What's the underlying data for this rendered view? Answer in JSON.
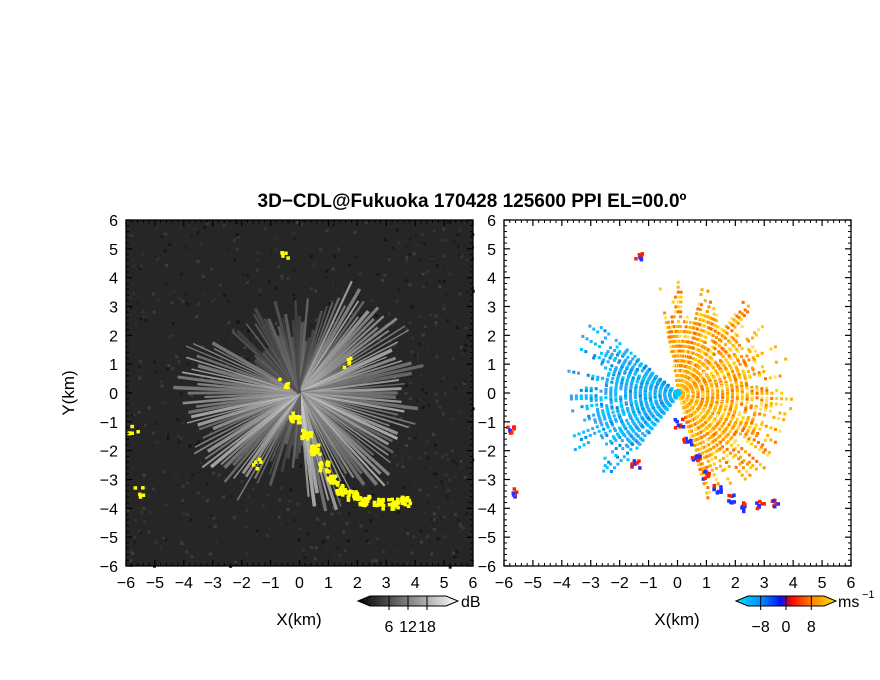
{
  "chart_data": [
    {
      "type": "heatmap",
      "title": "3D−CDL@Fukuoka 170428 125600 PPI EL=00.0º",
      "xlabel": "X(km)",
      "ylabel": "Y(km)",
      "xlim": [
        -6,
        6
      ],
      "ylim": [
        -6,
        6
      ],
      "x_ticks": [
        "−6",
        "−5",
        "−4",
        "−3",
        "−2",
        "−1",
        "0",
        "1",
        "2",
        "3",
        "4",
        "5",
        "6"
      ],
      "y_ticks": [
        "6",
        "5",
        "4",
        "3",
        "2",
        "1",
        "0",
        "−1",
        "−2",
        "−3",
        "−4",
        "−5",
        "−6"
      ],
      "colorbar": {
        "unit": "dB",
        "tick_labels": [
          "6",
          "12",
          "18"
        ],
        "ticks": [
          6,
          12,
          18
        ],
        "range": [
          0,
          24
        ]
      },
      "colors": {
        "background": "#2a2a2a",
        "highlight": "#ffff00"
      },
      "highlight_points": [
        [
          -0.2,
          -0.8
        ],
        [
          0.2,
          -1.4
        ],
        [
          0.5,
          -1.9
        ],
        [
          0.8,
          -2.5
        ],
        [
          1.1,
          -3.0
        ],
        [
          1.4,
          -3.3
        ],
        [
          1.8,
          -3.5
        ],
        [
          2.2,
          -3.7
        ],
        [
          2.7,
          -3.8
        ],
        [
          3.2,
          -3.8
        ],
        [
          3.6,
          -3.7
        ],
        [
          -5.8,
          -1.2
        ],
        [
          -5.6,
          -3.4
        ],
        [
          -1.5,
          -2.4
        ],
        [
          -0.6,
          0.4
        ],
        [
          1.6,
          1.1
        ],
        [
          -0.6,
          4.9
        ]
      ]
    },
    {
      "type": "heatmap",
      "xlabel": "X(km)",
      "xlim": [
        -6,
        6
      ],
      "ylim": [
        -6,
        6
      ],
      "x_ticks": [
        "−6",
        "−5",
        "−4",
        "−3",
        "−2",
        "−1",
        "0",
        "1",
        "2",
        "3",
        "4",
        "5",
        "6"
      ],
      "y_ticks": [
        "6",
        "5",
        "4",
        "3",
        "2",
        "1",
        "0",
        "−1",
        "−2",
        "−3",
        "−4",
        "−5",
        "−6"
      ],
      "colorbar": {
        "unit": "ms",
        "unit_exp": "−1",
        "tick_labels": [
          "−8",
          "0",
          "8"
        ],
        "ticks": [
          -8,
          0,
          8
        ],
        "range": [
          -12,
          12
        ]
      },
      "colors": {
        "approaching": "#00c8ff",
        "receding": "#ffb000",
        "edge_neg": "#2030ff",
        "edge_pos": "#ff2000"
      },
      "sectors": [
        {
          "name": "approaching",
          "az_from": 218,
          "az_to": 312,
          "r_max": 4.2
        },
        {
          "name": "receding",
          "az_from": 350,
          "az_to": 165,
          "r_max": 4.0
        }
      ]
    }
  ]
}
